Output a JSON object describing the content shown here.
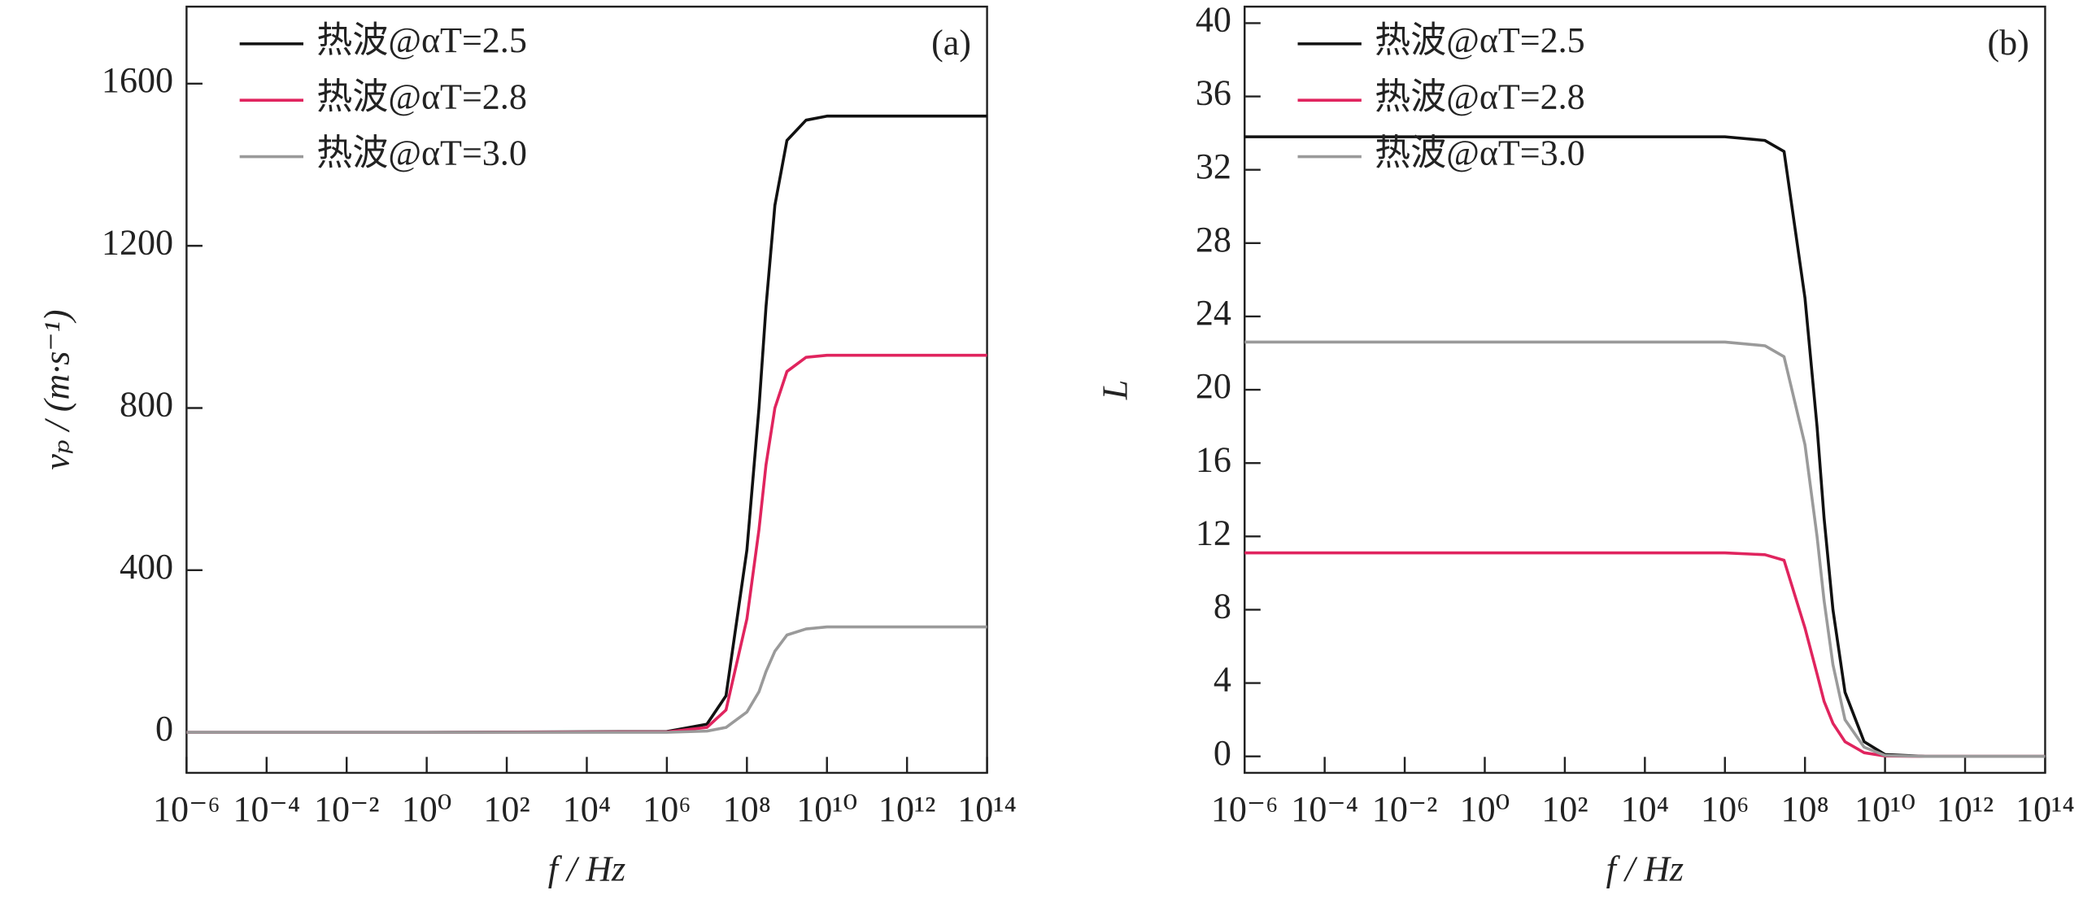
{
  "chart_data": [
    {
      "type": "line",
      "annotation": "(a)",
      "xlabel": "f / Hz",
      "ylabel": "vₚ / (m·s⁻¹)",
      "xscale": "log",
      "legend": "upper left",
      "x": [
        1e-06,
        1,
        1000000.0,
        10000000.0,
        30000000.0,
        100000000.0,
        200000000.0,
        300000000.0,
        500000000.0,
        1000000000.0,
        3000000000.0,
        10000000000.0,
        100000000000.0,
        100000000000000.0
      ],
      "xlim": [
        1e-06,
        100000000000000.0
      ],
      "xticks": [
        {
          "value": 1e-06,
          "label": "10⁻⁶"
        },
        {
          "value": 0.0001,
          "label": "10⁻⁴"
        },
        {
          "value": 0.01,
          "label": "10⁻²"
        },
        {
          "value": 1,
          "label": "10⁰"
        },
        {
          "value": 100,
          "label": "10²"
        },
        {
          "value": 10000.0,
          "label": "10⁴"
        },
        {
          "value": 1000000.0,
          "label": "10⁶"
        },
        {
          "value": 100000000.0,
          "label": "10⁸"
        },
        {
          "value": 10000000000.0,
          "label": "10¹⁰"
        },
        {
          "value": 1000000000000.0,
          "label": "10¹²"
        },
        {
          "value": 100000000000000.0,
          "label": "10¹⁴"
        }
      ],
      "ylim": [
        -100,
        1790
      ],
      "yticks": [
        0,
        400,
        800,
        1200,
        1600
      ],
      "series": [
        {
          "name": "热波@αT=2.5",
          "color": "#111111",
          "values": [
            0,
            0,
            2,
            20,
            90,
            450,
            800,
            1050,
            1300,
            1460,
            1510,
            1520,
            1520,
            1520
          ]
        },
        {
          "name": "热波@αT=2.8",
          "color": "#e0245e",
          "values": [
            0,
            0,
            1,
            12,
            55,
            280,
            500,
            660,
            800,
            890,
            925,
            930,
            930,
            930
          ]
        },
        {
          "name": "热波@αT=3.0",
          "color": "#9a9a9a",
          "values": [
            0,
            0,
            0,
            3,
            12,
            50,
            100,
            150,
            200,
            240,
            255,
            260,
            260,
            260
          ]
        }
      ]
    },
    {
      "type": "line",
      "annotation": "(b)",
      "xlabel": "f / Hz",
      "ylabel": "L",
      "xscale": "log",
      "legend": "upper left",
      "x": [
        1e-06,
        1,
        1000000.0,
        10000000.0,
        30000000.0,
        100000000.0,
        200000000.0,
        300000000.0,
        500000000.0,
        1000000000.0,
        3000000000.0,
        10000000000.0,
        100000000000.0,
        100000000000000.0
      ],
      "xlim": [
        1e-06,
        100000000000000.0
      ],
      "xticks": [
        {
          "value": 1e-06,
          "label": "10⁻⁶"
        },
        {
          "value": 0.0001,
          "label": "10⁻⁴"
        },
        {
          "value": 0.01,
          "label": "10⁻²"
        },
        {
          "value": 1,
          "label": "10⁰"
        },
        {
          "value": 100,
          "label": "10²"
        },
        {
          "value": 10000.0,
          "label": "10⁴"
        },
        {
          "value": 1000000.0,
          "label": "10⁶"
        },
        {
          "value": 100000000.0,
          "label": "10⁸"
        },
        {
          "value": 10000000000.0,
          "label": "10¹⁰"
        },
        {
          "value": 1000000000000.0,
          "label": "10¹²"
        },
        {
          "value": 100000000000000.0,
          "label": "10¹⁴"
        }
      ],
      "ylim": [
        -0.9,
        40.9
      ],
      "yticks": [
        0,
        4,
        8,
        12,
        16,
        20,
        24,
        28,
        32,
        36,
        40
      ],
      "series": [
        {
          "name": "热波@αT=2.5",
          "color": "#111111",
          "values": [
            33.8,
            33.8,
            33.8,
            33.6,
            33.0,
            25,
            18,
            13,
            8,
            3.5,
            0.8,
            0.1,
            0,
            0
          ]
        },
        {
          "name": "热波@αT=2.8",
          "color": "#e0245e",
          "values": [
            11.1,
            11.1,
            11.1,
            11.0,
            10.7,
            7,
            4.5,
            3,
            1.8,
            0.8,
            0.2,
            0.02,
            0,
            0
          ]
        },
        {
          "name": "热波@αT=3.0",
          "color": "#9a9a9a",
          "values": [
            22.6,
            22.6,
            22.6,
            22.4,
            21.8,
            17,
            12,
            8.5,
            5,
            2,
            0.5,
            0.05,
            0,
            0
          ]
        }
      ]
    }
  ]
}
